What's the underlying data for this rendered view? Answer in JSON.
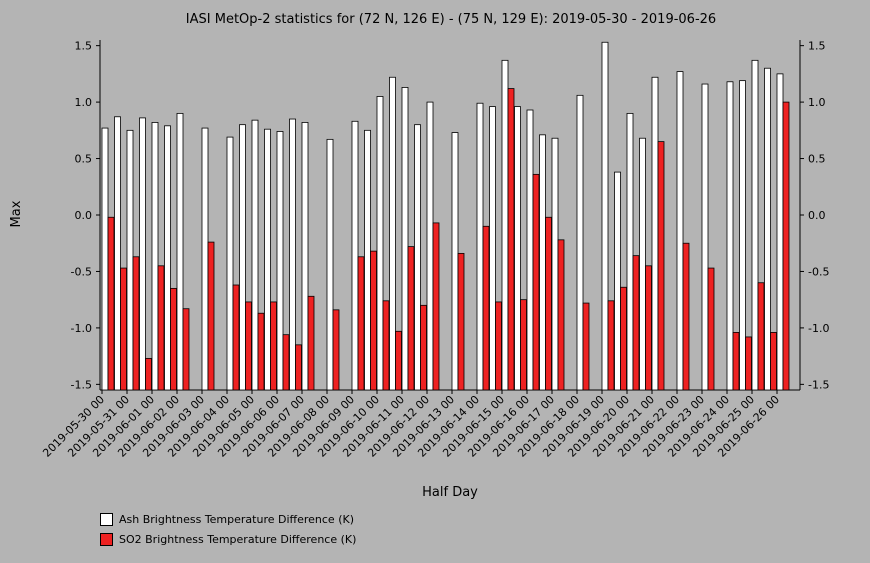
{
  "chart_data": {
    "type": "bar",
    "title": "IASI MetOp-2 statistics for (72 N, 126 E) - (75 N, 129 E): 2019-05-30 - 2019-06-26",
    "xlabel": "Half Day",
    "ylabel": "Max",
    "ylim": [
      -1.55,
      1.55
    ],
    "yticks": [
      "1.5",
      "1.0",
      "0.5",
      "0.0",
      "-0.5",
      "-1.0",
      "-1.5"
    ],
    "categories": [
      "2019-05-30 00",
      "2019-05-30 12",
      "2019-05-31 00",
      "2019-05-31 12",
      "2019-06-01 00",
      "2019-06-01 12",
      "2019-06-02 00",
      "2019-06-02 12",
      "2019-06-03 00",
      "2019-06-03 12",
      "2019-06-04 00",
      "2019-06-04 12",
      "2019-06-05 00",
      "2019-06-05 12",
      "2019-06-06 00",
      "2019-06-06 12",
      "2019-06-07 00",
      "2019-06-07 12",
      "2019-06-08 00",
      "2019-06-08 12",
      "2019-06-09 00",
      "2019-06-09 12",
      "2019-06-10 00",
      "2019-06-10 12",
      "2019-06-11 00",
      "2019-06-11 12",
      "2019-06-12 00",
      "2019-06-12 12",
      "2019-06-13 00",
      "2019-06-13 12",
      "2019-06-14 00",
      "2019-06-14 12",
      "2019-06-15 00",
      "2019-06-15 12",
      "2019-06-16 00",
      "2019-06-16 12",
      "2019-06-17 00",
      "2019-06-17 12",
      "2019-06-18 00",
      "2019-06-18 12",
      "2019-06-19 00",
      "2019-06-19 12",
      "2019-06-20 00",
      "2019-06-20 12",
      "2019-06-21 00",
      "2019-06-21 12",
      "2019-06-22 00",
      "2019-06-22 12",
      "2019-06-23 00",
      "2019-06-23 12",
      "2019-06-24 00",
      "2019-06-24 12",
      "2019-06-25 00",
      "2019-06-25 12",
      "2019-06-26 00",
      "2019-06-26 12"
    ],
    "tick_labels": [
      "2019-05-30 00",
      "2019-05-31 00",
      "2019-06-01 00",
      "2019-06-02 00",
      "2019-06-03 00",
      "2019-06-04 00",
      "2019-06-05 00",
      "2019-06-06 00",
      "2019-06-07 00",
      "2019-06-08 00",
      "2019-06-09 00",
      "2019-06-10 00",
      "2019-06-11 00",
      "2019-06-12 00",
      "2019-06-13 00",
      "2019-06-14 00",
      "2019-06-15 00",
      "2019-06-16 00",
      "2019-06-17 00",
      "2019-06-18 00",
      "2019-06-19 00",
      "2019-06-20 00",
      "2019-06-21 00",
      "2019-06-22 00",
      "2019-06-23 00",
      "2019-06-24 00",
      "2019-06-25 00",
      "2019-06-26 00"
    ],
    "series": [
      {
        "name": "Ash Brightness Temperature Difference (K)",
        "color": "#ffffff",
        "values": [
          0.77,
          0.87,
          0.75,
          0.86,
          0.82,
          0.79,
          0.9,
          null,
          0.77,
          null,
          0.69,
          0.8,
          0.84,
          0.76,
          0.74,
          0.85,
          0.82,
          null,
          0.67,
          null,
          0.83,
          0.75,
          1.05,
          1.22,
          1.13,
          0.8,
          1.0,
          null,
          0.73,
          null,
          0.99,
          0.96,
          1.37,
          0.96,
          0.93,
          0.71,
          0.68,
          null,
          1.06,
          null,
          1.53,
          0.38,
          0.9,
          0.68,
          1.22,
          null,
          1.27,
          null,
          1.16,
          null,
          1.18,
          1.19,
          1.37,
          1.3,
          1.25,
          null
        ]
      },
      {
        "name": "SO2 Brightness Temperature Difference (K)",
        "color": "#ee2222",
        "values": [
          -0.02,
          -0.47,
          -0.37,
          -1.27,
          -0.45,
          -0.65,
          -0.83,
          null,
          -0.24,
          null,
          -0.62,
          -0.77,
          -0.87,
          -0.77,
          -1.06,
          -1.15,
          -0.72,
          null,
          -0.84,
          null,
          -0.37,
          -0.32,
          -0.76,
          -1.03,
          -0.28,
          -0.8,
          -0.07,
          null,
          -0.34,
          null,
          -0.1,
          -0.77,
          1.12,
          -0.75,
          0.36,
          -0.02,
          -0.22,
          null,
          -0.78,
          null,
          -0.76,
          -0.64,
          -0.36,
          -0.45,
          0.65,
          null,
          -0.25,
          null,
          -0.47,
          null,
          -1.04,
          -1.08,
          -0.6,
          -1.04,
          1.0,
          null
        ]
      }
    ]
  }
}
